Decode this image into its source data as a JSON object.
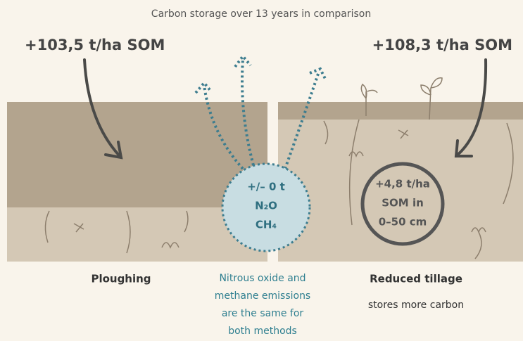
{
  "title": "Carbon storage over 13 years in comparison",
  "left": {
    "amount": "+103,5 t/ha SOM",
    "label": "Ploughing"
  },
  "right": {
    "amount": "+108,3 t/ha SOM",
    "label": "Reduced tillage",
    "note": "stores more carbon",
    "circle": [
      "+4,8 t/ha",
      "SOM in",
      "0–50 cm"
    ]
  },
  "center": {
    "circle": [
      "+/– 0 t",
      "N₂O",
      "CH₄"
    ],
    "caption": [
      "Nitrous oxide and",
      "methane emissions",
      "are the same for",
      "both methods"
    ]
  }
}
